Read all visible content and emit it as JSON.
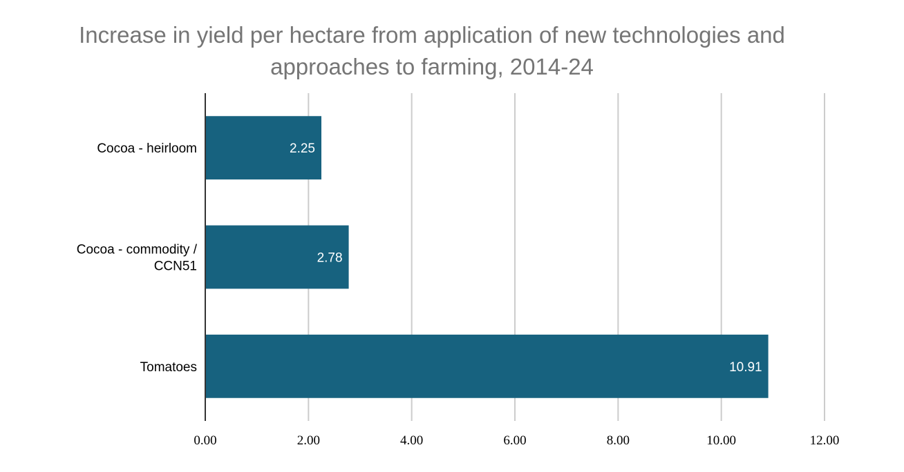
{
  "chart_data": {
    "type": "bar",
    "orientation": "horizontal",
    "title_lines": [
      "Increase in yield per hectare from application of new technologies and",
      "approaches to farming, 2014-24"
    ],
    "categories": [
      [
        "Cocoa - heirloom"
      ],
      [
        "Cocoa - commodity /",
        "CCN51"
      ],
      [
        "Tomatoes"
      ]
    ],
    "values": [
      2.25,
      2.78,
      10.91
    ],
    "value_labels": [
      "2.25",
      "2.78",
      "10.91"
    ],
    "x_ticks": [
      0,
      2,
      4,
      6,
      8,
      10,
      12
    ],
    "x_tick_labels": [
      "0.00",
      "2.00",
      "4.00",
      "6.00",
      "8.00",
      "10.00",
      "12.00"
    ],
    "xlim": [
      0,
      12
    ],
    "grid": true,
    "legend": "none",
    "colors": {
      "bar": "#17627f",
      "grid": "#cccccc",
      "axis": "#333333",
      "title": "#757575"
    }
  }
}
